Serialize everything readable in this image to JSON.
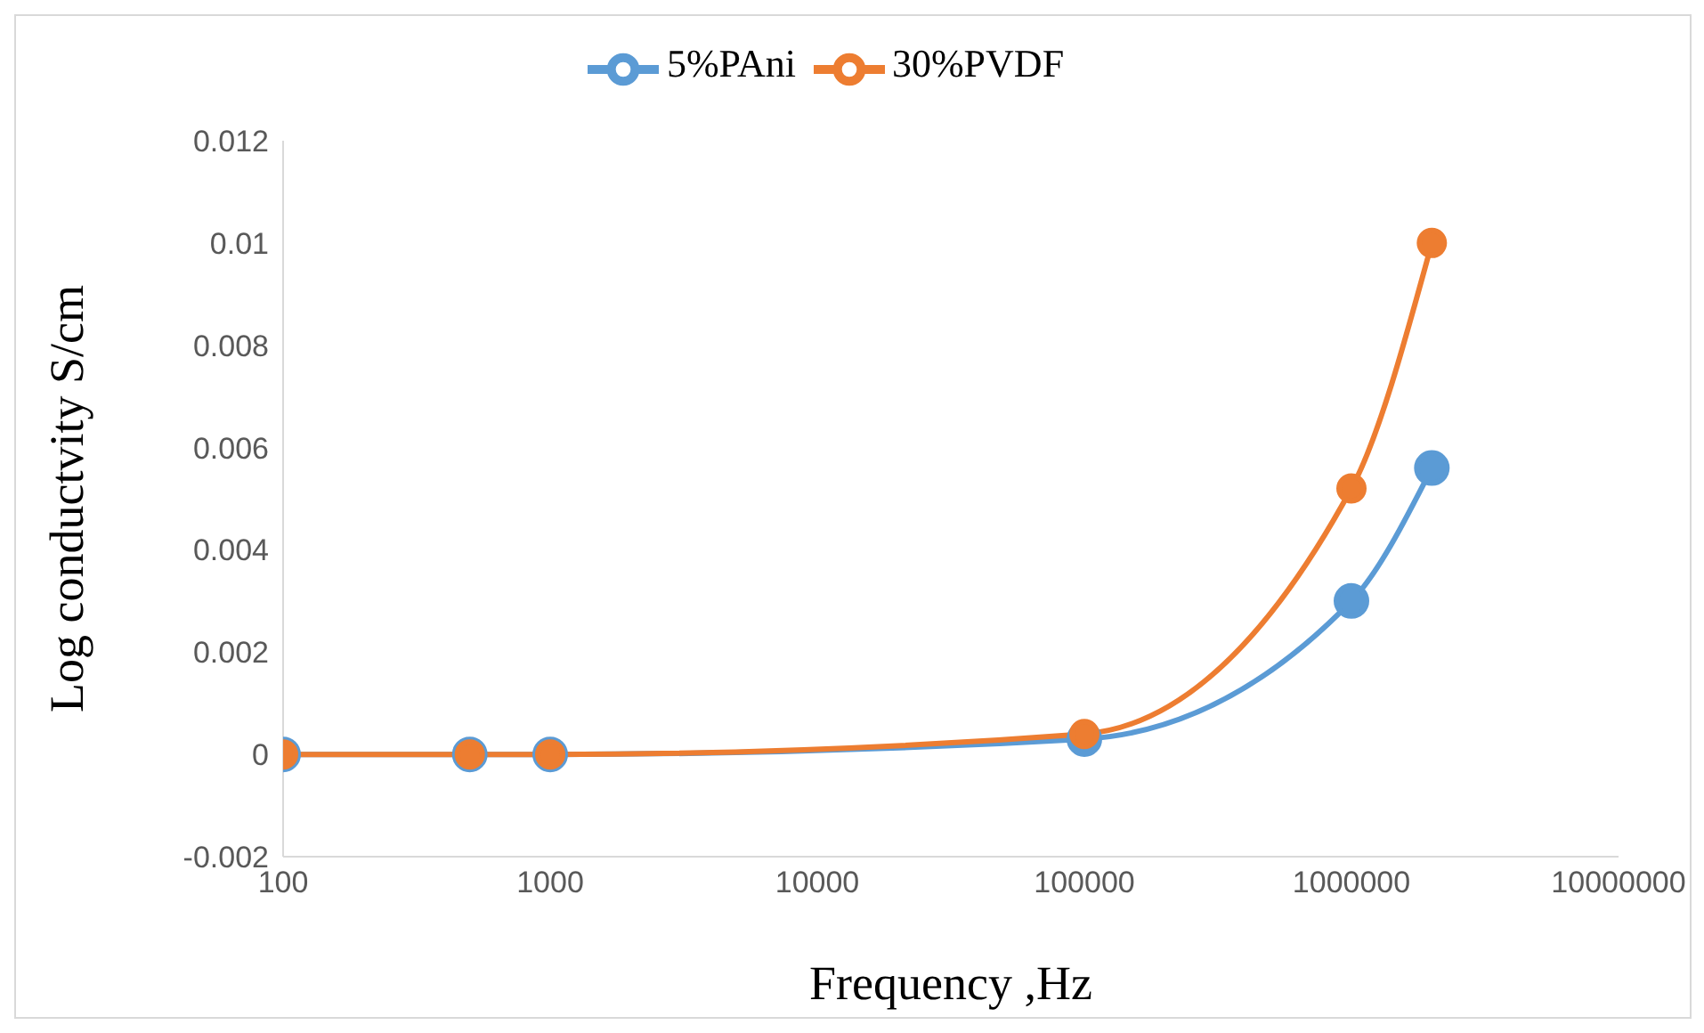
{
  "chart_data": {
    "type": "line",
    "xlabel": "Frequency ,Hz",
    "ylabel": "Log conductvity S/cm",
    "log": "x",
    "x": [
      100,
      500,
      1000,
      100000,
      1000000,
      2000000
    ],
    "series": [
      {
        "name": "5%PAni",
        "color": "#5b9bd5",
        "values": [
          0,
          0,
          0,
          0.0003,
          0.003,
          0.0056
        ]
      },
      {
        "name": "30%PVDF",
        "color": "#ed7d31",
        "values": [
          0,
          0,
          0,
          0.0004,
          0.0052,
          0.01
        ]
      }
    ],
    "xlim": [
      100,
      10000000
    ],
    "xticks": [
      100,
      1000,
      10000,
      100000,
      1000000,
      10000000
    ],
    "ylim": [
      -0.002,
      0.012
    ],
    "yticks": [
      -0.002,
      0,
      0.002,
      0.004,
      0.006,
      0.008,
      0.01,
      0.012
    ],
    "grid": false,
    "legend": "top",
    "marker": "circle",
    "line_style": "solid"
  }
}
